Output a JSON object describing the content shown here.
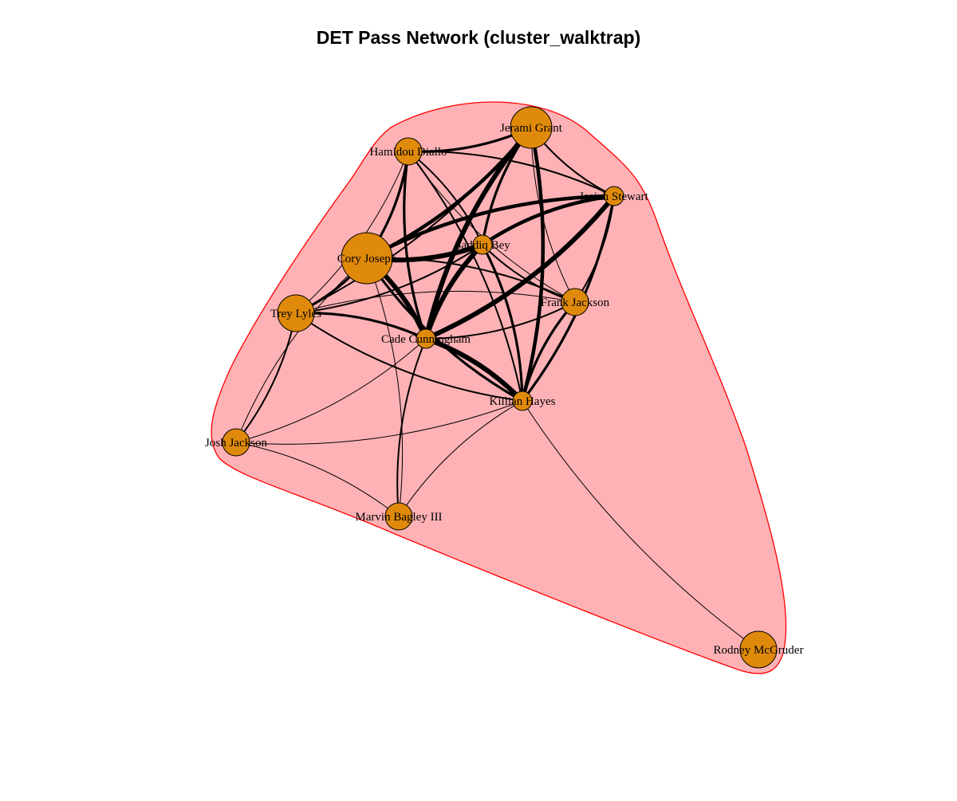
{
  "title": "DET Pass Network (cluster_walktrap)",
  "style": {
    "cluster_fill": "#ffb2b6",
    "cluster_stroke": "#ff0000",
    "node_fill": "#e08a0b",
    "node_stroke": "#000000",
    "edge_color": "#000000"
  },
  "nodes": [
    {
      "id": "cory",
      "label": "Cory Joseph",
      "size": 5
    },
    {
      "id": "jerami",
      "label": "Jerami Grant",
      "size": 4
    },
    {
      "id": "trey",
      "label": "Trey Lyles",
      "size": 3
    },
    {
      "id": "rodney",
      "label": "Rodney McGruder",
      "size": 3
    },
    {
      "id": "hamidou",
      "label": "Hamidou Diallo",
      "size": 2
    },
    {
      "id": "marvin",
      "label": "Marvin Bagley III",
      "size": 2
    },
    {
      "id": "josh",
      "label": "Josh Jackson",
      "size": 2
    },
    {
      "id": "frank",
      "label": "Frank Jackson",
      "size": 2
    },
    {
      "id": "isaiah",
      "label": "Isaiah Stewart",
      "size": 1
    },
    {
      "id": "saddiq",
      "label": "Saddiq Bey",
      "size": 1
    },
    {
      "id": "cade",
      "label": "Cade Cunningham",
      "size": 1
    },
    {
      "id": "killian",
      "label": "Killian Hayes",
      "size": 1
    }
  ],
  "edges": [
    {
      "from": "cory",
      "to": "saddiq",
      "weight": 5
    },
    {
      "from": "cory",
      "to": "cade",
      "weight": 5
    },
    {
      "from": "cory",
      "to": "jerami",
      "weight": 4
    },
    {
      "from": "cory",
      "to": "isaiah",
      "weight": 4
    },
    {
      "from": "cory",
      "to": "hamidou",
      "weight": 3
    },
    {
      "from": "cory",
      "to": "trey",
      "weight": 3
    },
    {
      "from": "cory",
      "to": "killian",
      "weight": 3
    },
    {
      "from": "cory",
      "to": "frank",
      "weight": 2
    },
    {
      "from": "cory",
      "to": "josh",
      "weight": 1
    },
    {
      "from": "cory",
      "to": "marvin",
      "weight": 1
    },
    {
      "from": "jerami",
      "to": "cade",
      "weight": 5
    },
    {
      "from": "jerami",
      "to": "killian",
      "weight": 4
    },
    {
      "from": "jerami",
      "to": "saddiq",
      "weight": 3
    },
    {
      "from": "jerami",
      "to": "hamidou",
      "weight": 3
    },
    {
      "from": "jerami",
      "to": "isaiah",
      "weight": 2
    },
    {
      "from": "jerami",
      "to": "trey",
      "weight": 2
    },
    {
      "from": "jerami",
      "to": "frank",
      "weight": 1
    },
    {
      "from": "isaiah",
      "to": "cade",
      "weight": 5
    },
    {
      "from": "isaiah",
      "to": "saddiq",
      "weight": 4
    },
    {
      "from": "isaiah",
      "to": "killian",
      "weight": 3
    },
    {
      "from": "isaiah",
      "to": "hamidou",
      "weight": 2
    },
    {
      "from": "isaiah",
      "to": "frank",
      "weight": 2
    },
    {
      "from": "saddiq",
      "to": "cade",
      "weight": 5
    },
    {
      "from": "saddiq",
      "to": "killian",
      "weight": 3
    },
    {
      "from": "saddiq",
      "to": "hamidou",
      "weight": 2
    },
    {
      "from": "saddiq",
      "to": "trey",
      "weight": 2
    },
    {
      "from": "saddiq",
      "to": "frank",
      "weight": 2
    },
    {
      "from": "cade",
      "to": "killian",
      "weight": 5
    },
    {
      "from": "cade",
      "to": "trey",
      "weight": 3
    },
    {
      "from": "cade",
      "to": "hamidou",
      "weight": 3
    },
    {
      "from": "cade",
      "to": "frank",
      "weight": 2
    },
    {
      "from": "cade",
      "to": "josh",
      "weight": 1
    },
    {
      "from": "cade",
      "to": "marvin",
      "weight": 2
    },
    {
      "from": "killian",
      "to": "frank",
      "weight": 3
    },
    {
      "from": "killian",
      "to": "hamidou",
      "weight": 2
    },
    {
      "from": "killian",
      "to": "trey",
      "weight": 2
    },
    {
      "from": "killian",
      "to": "marvin",
      "weight": 1
    },
    {
      "from": "killian",
      "to": "josh",
      "weight": 1
    },
    {
      "from": "killian",
      "to": "rodney",
      "weight": 1
    },
    {
      "from": "trey",
      "to": "josh",
      "weight": 2
    },
    {
      "from": "trey",
      "to": "hamidou",
      "weight": 1
    },
    {
      "from": "trey",
      "to": "frank",
      "weight": 1
    },
    {
      "from": "hamidou",
      "to": "frank",
      "weight": 1
    },
    {
      "from": "josh",
      "to": "marvin",
      "weight": 1
    }
  ]
}
